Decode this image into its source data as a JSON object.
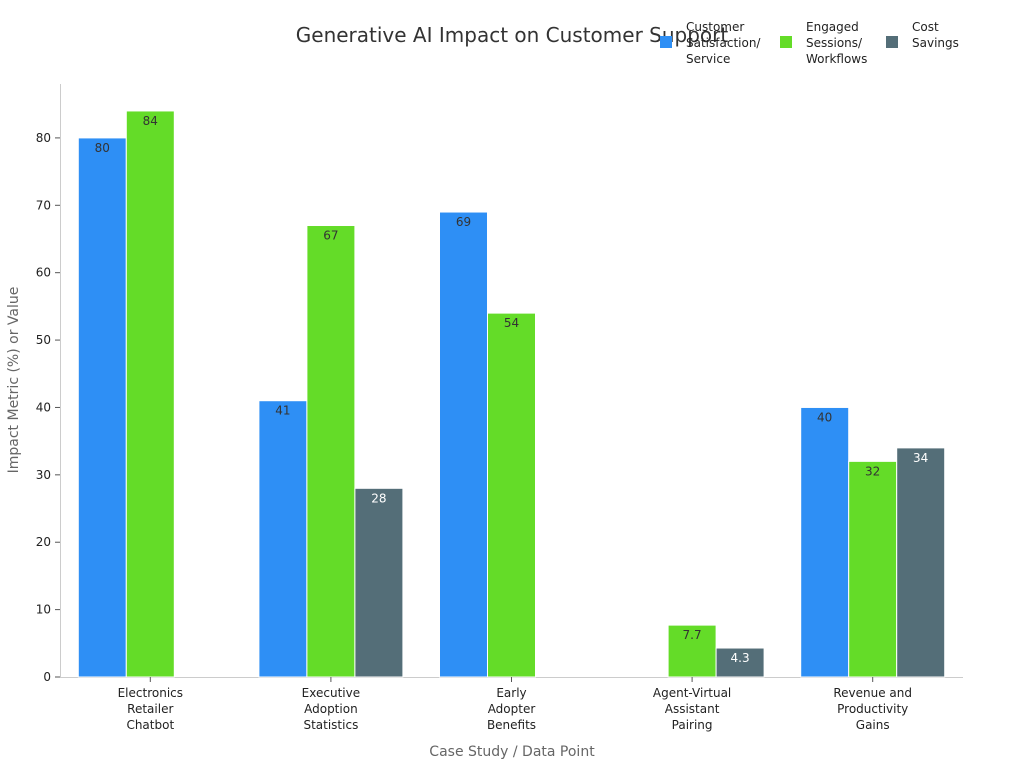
{
  "chart_data": {
    "type": "bar",
    "title": "Generative AI Impact on Customer Support",
    "xlabel": "Case Study / Data Point",
    "ylabel": "Impact Metric (%) or Value",
    "ylim": [
      0,
      88
    ],
    "yticks": [
      0,
      10,
      20,
      30,
      40,
      50,
      60,
      70,
      80
    ],
    "grid": false,
    "legend_position": "top-right",
    "categories": [
      [
        "Electronics",
        "Retailer",
        "Chatbot"
      ],
      [
        "Executive",
        "Adoption",
        "Statistics"
      ],
      [
        "Early",
        "Adopter",
        "Benefits"
      ],
      [
        "Agent-Virtual",
        "Assistant",
        "Pairing"
      ],
      [
        "Revenue and",
        "Productivity",
        "Gains"
      ]
    ],
    "series": [
      {
        "name": [
          "Customer",
          "Satisfaction/",
          "Service"
        ],
        "color": "#2e8ff5",
        "label_color": "#333333",
        "values": [
          80,
          41,
          69,
          null,
          40
        ],
        "labels": [
          "80",
          "41",
          "69",
          "",
          "40"
        ]
      },
      {
        "name": [
          "Engaged",
          "Sessions/",
          "Workflows"
        ],
        "color": "#64dc28",
        "label_color": "#333333",
        "values": [
          84,
          67,
          54,
          7.7,
          32
        ],
        "labels": [
          "84",
          "67",
          "54",
          "7.7",
          "32"
        ]
      },
      {
        "name": [
          "Cost",
          "Savings"
        ],
        "color": "#546e78",
        "label_color": "#ffffff",
        "values": [
          null,
          28,
          null,
          4.3,
          34
        ],
        "labels": [
          "",
          "28",
          "",
          "4.3",
          "34"
        ]
      }
    ]
  }
}
